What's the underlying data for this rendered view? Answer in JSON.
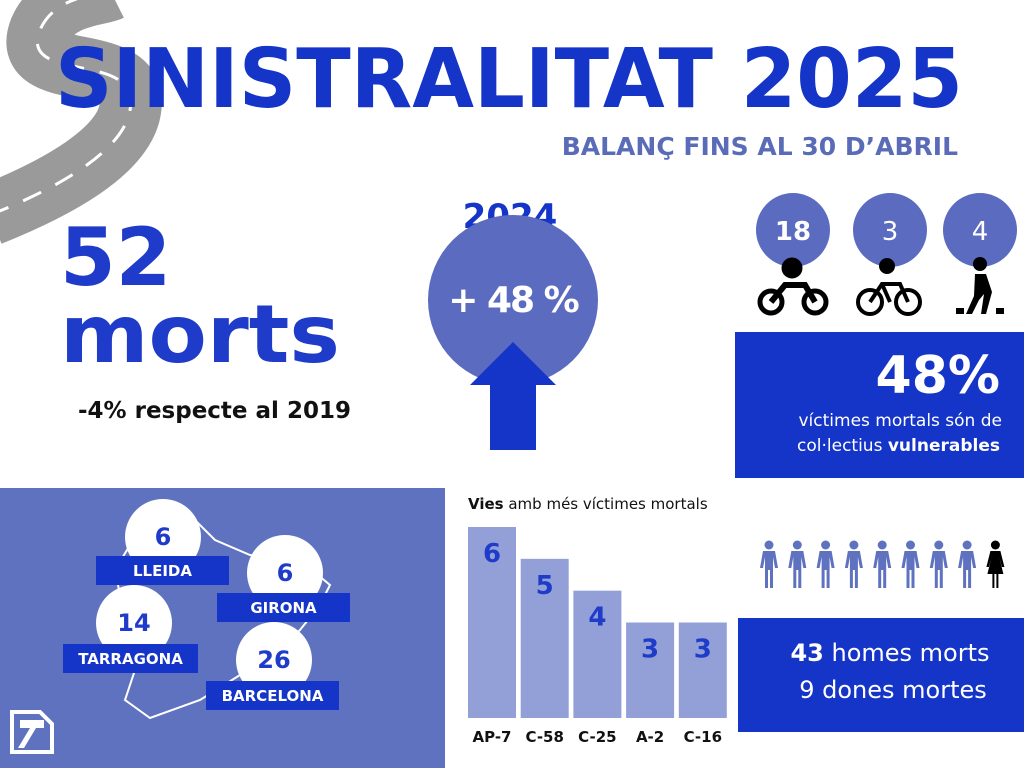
{
  "header": {
    "title": "SINISTRALITAT 2025",
    "subtitle": "BALANÇ FINS AL 30 D’ABRIL"
  },
  "deaths": {
    "number": "52",
    "unit": "morts",
    "comparison": "-4% respecte al 2019"
  },
  "change": {
    "year": "2024",
    "label": "+ 48 %"
  },
  "vulnerable": {
    "groups": [
      18,
      3,
      4
    ],
    "percent": "48%",
    "line1": "víctimes mortals són de",
    "line2": "col·lectius ",
    "line2_bold": "vulnerables"
  },
  "provinces": [
    {
      "name": "LLEIDA",
      "value": 6
    },
    {
      "name": "GIRONA",
      "value": 6
    },
    {
      "name": "TARRAGONA",
      "value": 14
    },
    {
      "name": "BARCELONA",
      "value": 26
    }
  ],
  "roads": {
    "title_bold": "Vies",
    "title_rest": " amb més víctimes mortals",
    "categories": [
      "AP-7",
      "C-58",
      "C-25",
      "A-2",
      "C-16"
    ],
    "values": [
      6,
      5,
      4,
      3,
      3
    ]
  },
  "gender": {
    "men_value": 43,
    "men_label": " homes morts",
    "women_value": 9,
    "women_label": " dones mortes"
  }
}
